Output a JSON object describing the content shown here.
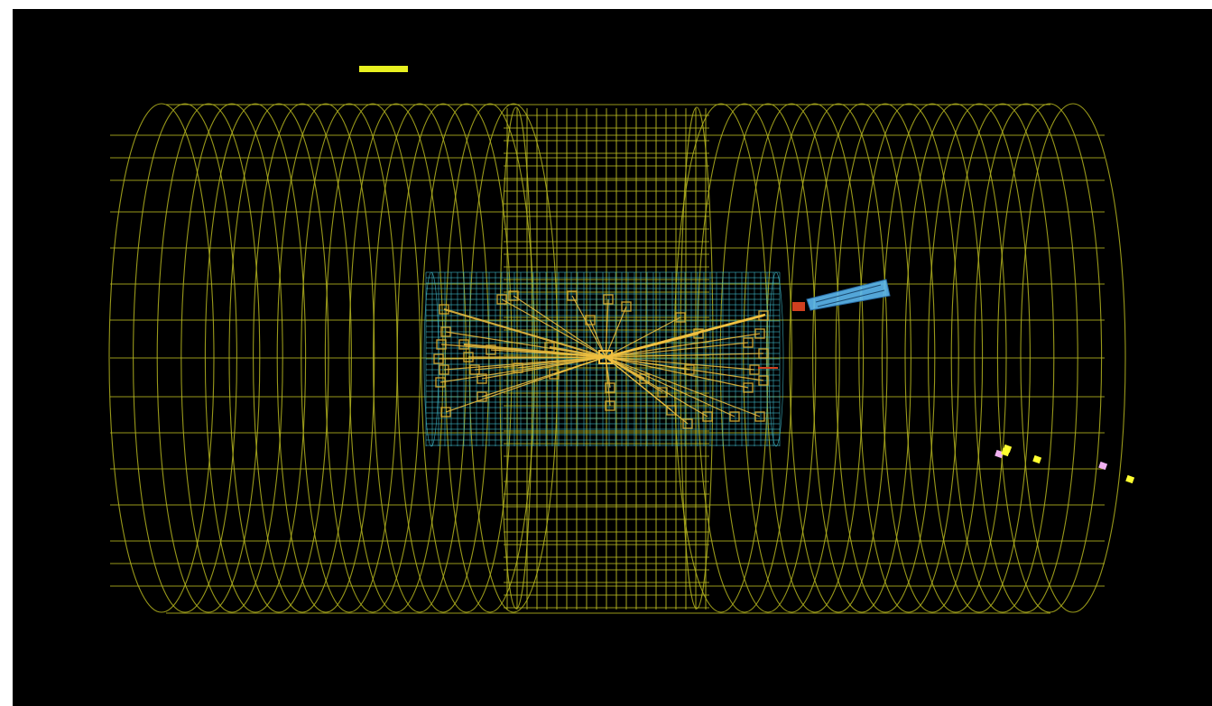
{
  "scene": {
    "background": "#000000",
    "colors": {
      "muon_system": "#b4b41e",
      "tracker": "#3fb8c8",
      "tracks": "#f0c040",
      "hits": "#e0b030",
      "jet": "#5cb8f0",
      "calo_hit": "#d04020",
      "endcap_hit_a": "#ffff30",
      "endcap_hit_b": "#f0b0f0"
    },
    "objects": [
      "scale-bar",
      "muon-system-wireframe",
      "inner-tracker-wireframe",
      "track-bundle",
      "jet-cone",
      "endcap-hits"
    ]
  }
}
